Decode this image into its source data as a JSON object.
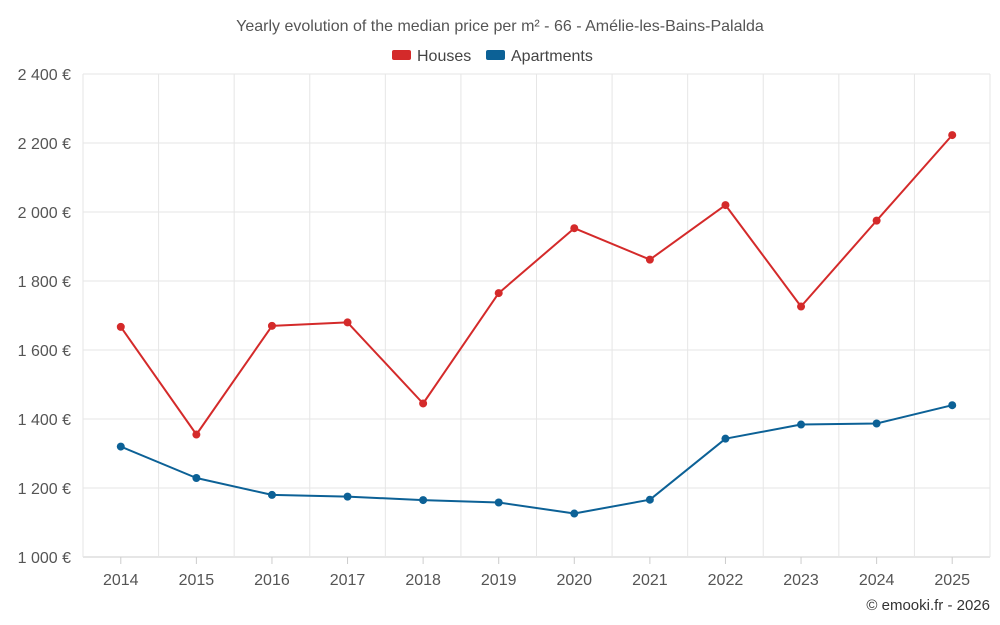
{
  "chart_data": {
    "type": "line",
    "title": "Yearly evolution of the median price per m² - 66 - Amélie-les-Bains-Palalda",
    "categories": [
      "2014",
      "2015",
      "2016",
      "2017",
      "2018",
      "2019",
      "2020",
      "2021",
      "2022",
      "2023",
      "2024",
      "2025"
    ],
    "series": [
      {
        "name": "Houses",
        "color": "#d42a2a",
        "values": [
          1667,
          1355,
          1670,
          1680,
          1445,
          1765,
          1953,
          1862,
          2020,
          1726,
          1975,
          2223
        ]
      },
      {
        "name": "Apartments",
        "color": "#0c6196",
        "values": [
          1320,
          1229,
          1180,
          1175,
          1165,
          1158,
          1126,
          1166,
          1343,
          1384,
          1387,
          1440
        ]
      }
    ],
    "ylim": [
      1000,
      2400
    ],
    "yticks": [
      1000,
      1200,
      1400,
      1600,
      1800,
      2000,
      2200,
      2400
    ],
    "ytick_labels": [
      "1 000 €",
      "1 200 €",
      "1 400 €",
      "1 600 €",
      "1 800 €",
      "2 000 €",
      "2 200 €",
      "2 400 €"
    ],
    "xlabel": "",
    "ylabel": "",
    "legend_position": "top-center",
    "grid": true
  },
  "credit": "© emooki.fr - 2026"
}
